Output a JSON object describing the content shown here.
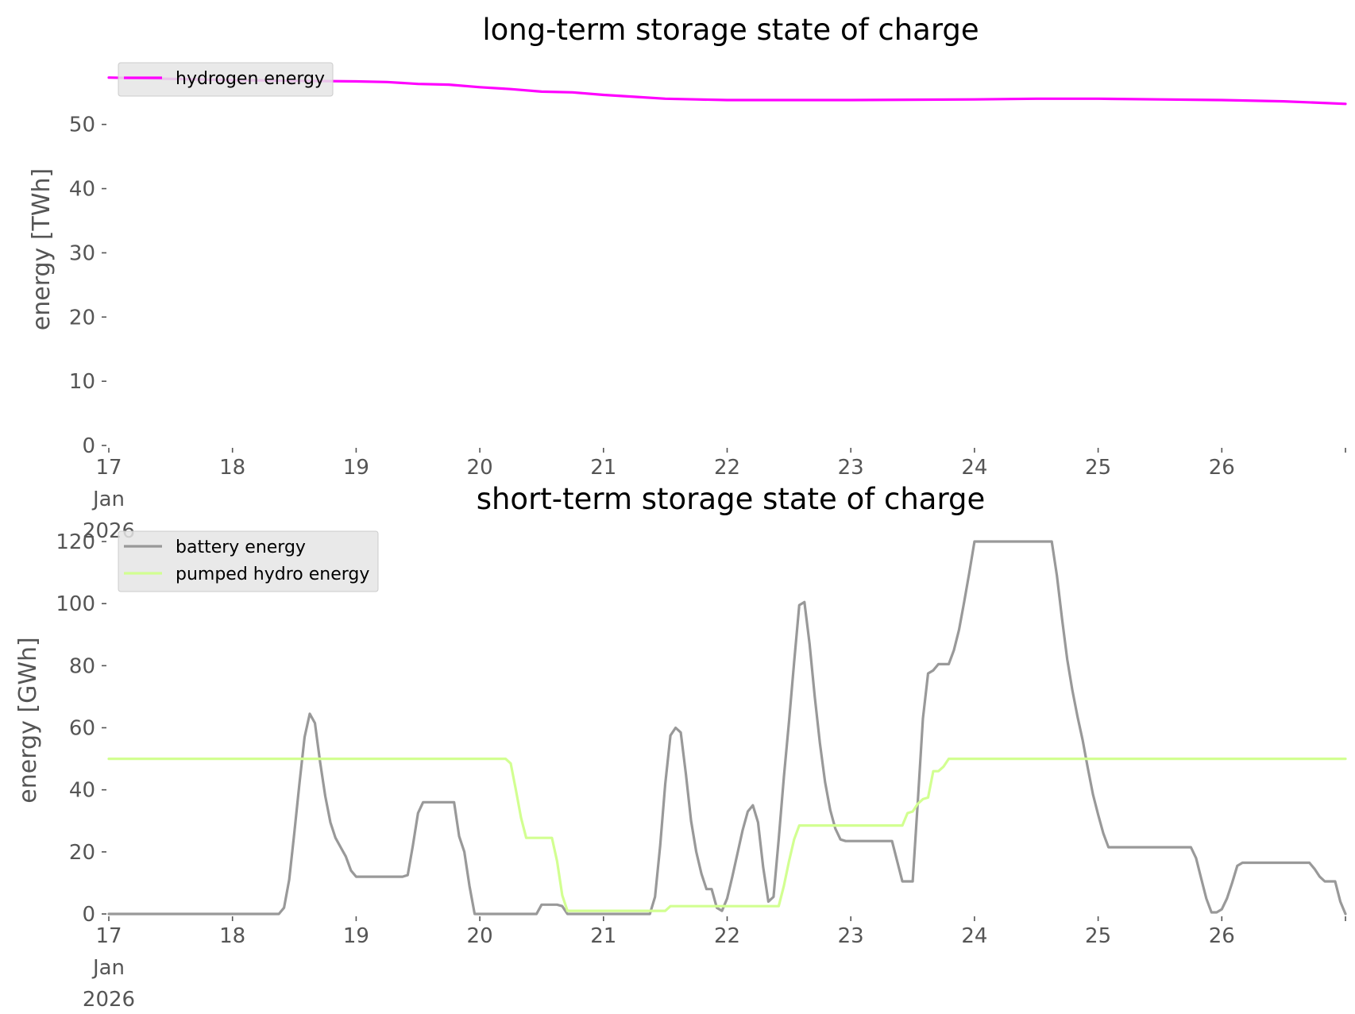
{
  "chart_data": [
    {
      "type": "line",
      "title": "long-term storage state of charge",
      "xlabel": "",
      "ylabel": "energy [TWh]",
      "x_tick_labels": [
        "17",
        "18",
        "19",
        "20",
        "21",
        "22",
        "23",
        "24",
        "25",
        "26"
      ],
      "x_tick_sublabels": [
        "Jan",
        "2026"
      ],
      "x_ticks": [
        "2026-01-17",
        "2026-01-18",
        "2026-01-19",
        "2026-01-20",
        "2026-01-21",
        "2026-01-22",
        "2026-01-23",
        "2026-01-24",
        "2026-01-25",
        "2026-01-26"
      ],
      "xlim": [
        "2026-01-17",
        "2026-01-27"
      ],
      "ylim": [
        0,
        58
      ],
      "y_ticks": [
        0,
        10,
        20,
        30,
        40,
        50
      ],
      "grid": false,
      "legend_position": "top-left",
      "series": [
        {
          "name": "hydrogen energy",
          "color": "#ff00ff",
          "points": [
            [
              "2026-01-17 00:00",
              57.3
            ],
            [
              "2026-01-17 12:00",
              57.1
            ],
            [
              "2026-01-18 00:00",
              56.9
            ],
            [
              "2026-01-18 12:00",
              56.8
            ],
            [
              "2026-01-19 00:00",
              56.7
            ],
            [
              "2026-01-19 06:00",
              56.6
            ],
            [
              "2026-01-19 12:00",
              56.3
            ],
            [
              "2026-01-19 18:00",
              56.2
            ],
            [
              "2026-01-20 00:00",
              55.8
            ],
            [
              "2026-01-20 06:00",
              55.5
            ],
            [
              "2026-01-20 12:00",
              55.1
            ],
            [
              "2026-01-20 18:00",
              55.0
            ],
            [
              "2026-01-21 00:00",
              54.6
            ],
            [
              "2026-01-21 06:00",
              54.3
            ],
            [
              "2026-01-21 12:00",
              54.0
            ],
            [
              "2026-01-21 18:00",
              53.9
            ],
            [
              "2026-01-22 00:00",
              53.8
            ],
            [
              "2026-01-23 00:00",
              53.8
            ],
            [
              "2026-01-24 00:00",
              53.9
            ],
            [
              "2026-01-24 12:00",
              54.0
            ],
            [
              "2026-01-25 00:00",
              54.0
            ],
            [
              "2026-01-25 12:00",
              53.9
            ],
            [
              "2026-01-26 00:00",
              53.8
            ],
            [
              "2026-01-26 12:00",
              53.6
            ],
            [
              "2026-01-27 00:00",
              53.2
            ]
          ]
        }
      ]
    },
    {
      "type": "line",
      "title": "short-term storage state of charge",
      "xlabel": "",
      "ylabel": "energy [GWh]",
      "x_tick_labels": [
        "17",
        "18",
        "19",
        "20",
        "21",
        "22",
        "23",
        "24",
        "25",
        "26"
      ],
      "x_tick_sublabels": [
        "Jan",
        "2026"
      ],
      "x_ticks": [
        "2026-01-17",
        "2026-01-18",
        "2026-01-19",
        "2026-01-20",
        "2026-01-21",
        "2026-01-22",
        "2026-01-23",
        "2026-01-24",
        "2026-01-25",
        "2026-01-26"
      ],
      "xlim": [
        "2026-01-17",
        "2026-01-27"
      ],
      "ylim": [
        0,
        120
      ],
      "y_ticks": [
        0,
        20,
        40,
        60,
        80,
        100,
        120
      ],
      "grid": false,
      "legend_position": "top-left",
      "series": [
        {
          "name": "battery energy",
          "color": "#999999",
          "points": [
            [
              "2026-01-17 00:00",
              0
            ],
            [
              "2026-01-18 09:00",
              0
            ],
            [
              "2026-01-18 10:00",
              2
            ],
            [
              "2026-01-18 11:00",
              11
            ],
            [
              "2026-01-18 12:00",
              26
            ],
            [
              "2026-01-18 13:00",
              42
            ],
            [
              "2026-01-18 14:00",
              57
            ],
            [
              "2026-01-18 15:00",
              64.5
            ],
            [
              "2026-01-18 16:00",
              61.5
            ],
            [
              "2026-01-18 17:00",
              49
            ],
            [
              "2026-01-18 18:00",
              38
            ],
            [
              "2026-01-18 19:00",
              29.5
            ],
            [
              "2026-01-18 20:00",
              24.5
            ],
            [
              "2026-01-18 21:00",
              21.5
            ],
            [
              "2026-01-18 22:00",
              18.5
            ],
            [
              "2026-01-18 23:00",
              14
            ],
            [
              "2026-01-19 00:00",
              12
            ],
            [
              "2026-01-19 09:00",
              12
            ],
            [
              "2026-01-19 10:00",
              12.5
            ],
            [
              "2026-01-19 11:00",
              22
            ],
            [
              "2026-01-19 12:00",
              32.5
            ],
            [
              "2026-01-19 13:00",
              36
            ],
            [
              "2026-01-19 19:00",
              36
            ],
            [
              "2026-01-19 20:00",
              25
            ],
            [
              "2026-01-19 21:00",
              20
            ],
            [
              "2026-01-19 22:00",
              9
            ],
            [
              "2026-01-19 23:00",
              0
            ],
            [
              "2026-01-20 11:00",
              0
            ],
            [
              "2026-01-20 12:00",
              3
            ],
            [
              "2026-01-20 15:00",
              3
            ],
            [
              "2026-01-20 16:00",
              2.5
            ],
            [
              "2026-01-20 17:00",
              0
            ],
            [
              "2026-01-21 09:00",
              0
            ],
            [
              "2026-01-21 10:00",
              5.5
            ],
            [
              "2026-01-21 11:00",
              22
            ],
            [
              "2026-01-21 12:00",
              42
            ],
            [
              "2026-01-21 13:00",
              57.5
            ],
            [
              "2026-01-21 14:00",
              60
            ],
            [
              "2026-01-21 15:00",
              58.5
            ],
            [
              "2026-01-21 16:00",
              45
            ],
            [
              "2026-01-21 17:00",
              30
            ],
            [
              "2026-01-21 18:00",
              20
            ],
            [
              "2026-01-21 19:00",
              13
            ],
            [
              "2026-01-21 20:00",
              8
            ],
            [
              "2026-01-21 21:00",
              8
            ],
            [
              "2026-01-21 22:00",
              2
            ],
            [
              "2026-01-21 23:00",
              1
            ],
            [
              "2026-01-22 00:00",
              5
            ],
            [
              "2026-01-22 01:00",
              12
            ],
            [
              "2026-01-22 02:00",
              19.5
            ],
            [
              "2026-01-22 03:00",
              27
            ],
            [
              "2026-01-22 04:00",
              33
            ],
            [
              "2026-01-22 05:00",
              35
            ],
            [
              "2026-01-22 06:00",
              29.5
            ],
            [
              "2026-01-22 07:00",
              15
            ],
            [
              "2026-01-22 08:00",
              4
            ],
            [
              "2026-01-22 09:00",
              5.5
            ],
            [
              "2026-01-22 10:00",
              24
            ],
            [
              "2026-01-22 11:00",
              44
            ],
            [
              "2026-01-22 12:00",
              62
            ],
            [
              "2026-01-22 13:00",
              81
            ],
            [
              "2026-01-22 14:00",
              99.5
            ],
            [
              "2026-01-22 15:00",
              100.5
            ],
            [
              "2026-01-22 16:00",
              87
            ],
            [
              "2026-01-22 17:00",
              70
            ],
            [
              "2026-01-22 18:00",
              55
            ],
            [
              "2026-01-22 19:00",
              42.5
            ],
            [
              "2026-01-22 20:00",
              33.5
            ],
            [
              "2026-01-22 21:00",
              27.5
            ],
            [
              "2026-01-22 22:00",
              24
            ],
            [
              "2026-01-22 23:00",
              23.5
            ],
            [
              "2026-01-23 08:00",
              23.5
            ],
            [
              "2026-01-23 09:00",
              17
            ],
            [
              "2026-01-23 10:00",
              10.5
            ],
            [
              "2026-01-23 11:00",
              10.5
            ],
            [
              "2026-01-23 12:00",
              10.5
            ],
            [
              "2026-01-23 13:00",
              36
            ],
            [
              "2026-01-23 14:00",
              63
            ],
            [
              "2026-01-23 15:00",
              77.5
            ],
            [
              "2026-01-23 16:00",
              78.5
            ],
            [
              "2026-01-23 17:00",
              80.5
            ],
            [
              "2026-01-23 18:00",
              80.5
            ],
            [
              "2026-01-23 19:00",
              80.5
            ],
            [
              "2026-01-23 20:00",
              85
            ],
            [
              "2026-01-23 21:00",
              91.5
            ],
            [
              "2026-01-23 22:00",
              100.5
            ],
            [
              "2026-01-23 23:00",
              110
            ],
            [
              "2026-01-24 00:00",
              120
            ],
            [
              "2026-01-24 15:00",
              120
            ],
            [
              "2026-01-24 16:00",
              109
            ],
            [
              "2026-01-24 17:00",
              95
            ],
            [
              "2026-01-24 18:00",
              82
            ],
            [
              "2026-01-24 19:00",
              72
            ],
            [
              "2026-01-24 20:00",
              63.5
            ],
            [
              "2026-01-24 21:00",
              56
            ],
            [
              "2026-01-24 22:00",
              47
            ],
            [
              "2026-01-24 23:00",
              38.5
            ],
            [
              "2026-01-25 00:00",
              32
            ],
            [
              "2026-01-25 01:00",
              26
            ],
            [
              "2026-01-25 02:00",
              21.5
            ],
            [
              "2026-01-25 18:00",
              21.5
            ],
            [
              "2026-01-25 19:00",
              18
            ],
            [
              "2026-01-25 20:00",
              11.5
            ],
            [
              "2026-01-25 21:00",
              5
            ],
            [
              "2026-01-25 22:00",
              0.5
            ],
            [
              "2026-01-25 23:00",
              0.5
            ],
            [
              "2026-01-26 00:00",
              1.5
            ],
            [
              "2026-01-26 01:00",
              5
            ],
            [
              "2026-01-26 02:00",
              10
            ],
            [
              "2026-01-26 03:00",
              15.5
            ],
            [
              "2026-01-26 04:00",
              16.5
            ],
            [
              "2026-01-26 17:00",
              16.5
            ],
            [
              "2026-01-26 18:00",
              14.5
            ],
            [
              "2026-01-26 19:00",
              12
            ],
            [
              "2026-01-26 20:00",
              10.5
            ],
            [
              "2026-01-26 22:00",
              10.5
            ],
            [
              "2026-01-26 23:00",
              4
            ],
            [
              "2026-01-27 00:00",
              0
            ]
          ]
        },
        {
          "name": "pumped hydro energy",
          "color": "#d2ff91",
          "points": [
            [
              "2026-01-17 00:00",
              50
            ],
            [
              "2026-01-20 05:00",
              50
            ],
            [
              "2026-01-20 06:00",
              48.5
            ],
            [
              "2026-01-20 07:00",
              40
            ],
            [
              "2026-01-20 08:00",
              31
            ],
            [
              "2026-01-20 09:00",
              24.5
            ],
            [
              "2026-01-20 14:00",
              24.5
            ],
            [
              "2026-01-20 15:00",
              17
            ],
            [
              "2026-01-20 16:00",
              6
            ],
            [
              "2026-01-20 17:00",
              1
            ],
            [
              "2026-01-21 12:00",
              1
            ],
            [
              "2026-01-21 13:00",
              2.5
            ],
            [
              "2026-01-22 10:00",
              2.5
            ],
            [
              "2026-01-22 11:00",
              9
            ],
            [
              "2026-01-22 12:00",
              17
            ],
            [
              "2026-01-22 13:00",
              24
            ],
            [
              "2026-01-22 14:00",
              28.5
            ],
            [
              "2026-01-23 09:00",
              28.5
            ],
            [
              "2026-01-23 10:00",
              28.5
            ],
            [
              "2026-01-23 11:00",
              32.5
            ],
            [
              "2026-01-23 12:00",
              33
            ],
            [
              "2026-01-23 13:00",
              35.5
            ],
            [
              "2026-01-23 14:00",
              37
            ],
            [
              "2026-01-23 15:00",
              37.5
            ],
            [
              "2026-01-23 16:00",
              46
            ],
            [
              "2026-01-23 17:00",
              46
            ],
            [
              "2026-01-23 18:00",
              47.5
            ],
            [
              "2026-01-23 19:00",
              50
            ],
            [
              "2026-01-27 00:00",
              50
            ]
          ]
        }
      ]
    }
  ]
}
